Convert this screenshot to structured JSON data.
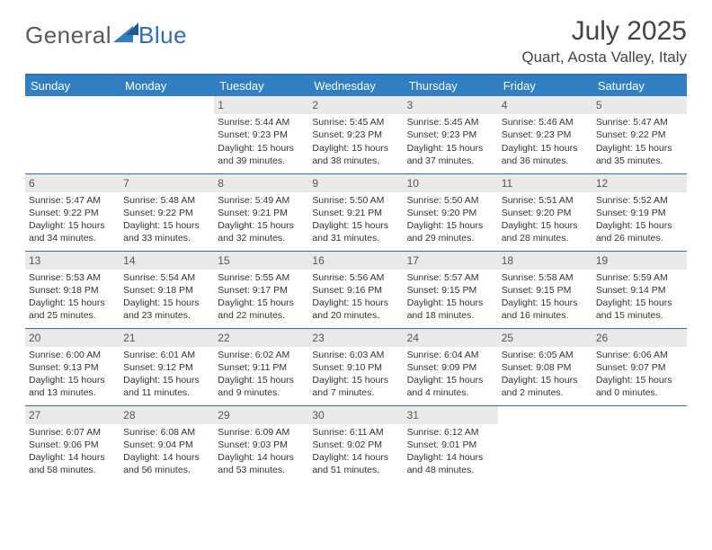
{
  "logo": {
    "text_a": "General",
    "text_b": "Blue"
  },
  "title": "July 2025",
  "location": "Quart, Aosta Valley, Italy",
  "colors": {
    "header_bg": "#2f7fc2",
    "header_border": "#2f6fb3",
    "daynum_bg": "#e9e9e9",
    "text": "#333333",
    "page_bg": "#ffffff"
  },
  "typography": {
    "title_fontsize": 30,
    "location_fontsize": 17,
    "weekday_fontsize": 13,
    "cell_fontsize": 10.5
  },
  "weekdays": [
    "Sunday",
    "Monday",
    "Tuesday",
    "Wednesday",
    "Thursday",
    "Friday",
    "Saturday"
  ],
  "weeks": [
    [
      {
        "empty": true
      },
      {
        "empty": true
      },
      {
        "day": "1",
        "sunrise": "Sunrise: 5:44 AM",
        "sunset": "Sunset: 9:23 PM",
        "dl1": "Daylight: 15 hours",
        "dl2": "and 39 minutes."
      },
      {
        "day": "2",
        "sunrise": "Sunrise: 5:45 AM",
        "sunset": "Sunset: 9:23 PM",
        "dl1": "Daylight: 15 hours",
        "dl2": "and 38 minutes."
      },
      {
        "day": "3",
        "sunrise": "Sunrise: 5:45 AM",
        "sunset": "Sunset: 9:23 PM",
        "dl1": "Daylight: 15 hours",
        "dl2": "and 37 minutes."
      },
      {
        "day": "4",
        "sunrise": "Sunrise: 5:46 AM",
        "sunset": "Sunset: 9:23 PM",
        "dl1": "Daylight: 15 hours",
        "dl2": "and 36 minutes."
      },
      {
        "day": "5",
        "sunrise": "Sunrise: 5:47 AM",
        "sunset": "Sunset: 9:22 PM",
        "dl1": "Daylight: 15 hours",
        "dl2": "and 35 minutes."
      }
    ],
    [
      {
        "day": "6",
        "sunrise": "Sunrise: 5:47 AM",
        "sunset": "Sunset: 9:22 PM",
        "dl1": "Daylight: 15 hours",
        "dl2": "and 34 minutes."
      },
      {
        "day": "7",
        "sunrise": "Sunrise: 5:48 AM",
        "sunset": "Sunset: 9:22 PM",
        "dl1": "Daylight: 15 hours",
        "dl2": "and 33 minutes."
      },
      {
        "day": "8",
        "sunrise": "Sunrise: 5:49 AM",
        "sunset": "Sunset: 9:21 PM",
        "dl1": "Daylight: 15 hours",
        "dl2": "and 32 minutes."
      },
      {
        "day": "9",
        "sunrise": "Sunrise: 5:50 AM",
        "sunset": "Sunset: 9:21 PM",
        "dl1": "Daylight: 15 hours",
        "dl2": "and 31 minutes."
      },
      {
        "day": "10",
        "sunrise": "Sunrise: 5:50 AM",
        "sunset": "Sunset: 9:20 PM",
        "dl1": "Daylight: 15 hours",
        "dl2": "and 29 minutes."
      },
      {
        "day": "11",
        "sunrise": "Sunrise: 5:51 AM",
        "sunset": "Sunset: 9:20 PM",
        "dl1": "Daylight: 15 hours",
        "dl2": "and 28 minutes."
      },
      {
        "day": "12",
        "sunrise": "Sunrise: 5:52 AM",
        "sunset": "Sunset: 9:19 PM",
        "dl1": "Daylight: 15 hours",
        "dl2": "and 26 minutes."
      }
    ],
    [
      {
        "day": "13",
        "sunrise": "Sunrise: 5:53 AM",
        "sunset": "Sunset: 9:18 PM",
        "dl1": "Daylight: 15 hours",
        "dl2": "and 25 minutes."
      },
      {
        "day": "14",
        "sunrise": "Sunrise: 5:54 AM",
        "sunset": "Sunset: 9:18 PM",
        "dl1": "Daylight: 15 hours",
        "dl2": "and 23 minutes."
      },
      {
        "day": "15",
        "sunrise": "Sunrise: 5:55 AM",
        "sunset": "Sunset: 9:17 PM",
        "dl1": "Daylight: 15 hours",
        "dl2": "and 22 minutes."
      },
      {
        "day": "16",
        "sunrise": "Sunrise: 5:56 AM",
        "sunset": "Sunset: 9:16 PM",
        "dl1": "Daylight: 15 hours",
        "dl2": "and 20 minutes."
      },
      {
        "day": "17",
        "sunrise": "Sunrise: 5:57 AM",
        "sunset": "Sunset: 9:15 PM",
        "dl1": "Daylight: 15 hours",
        "dl2": "and 18 minutes."
      },
      {
        "day": "18",
        "sunrise": "Sunrise: 5:58 AM",
        "sunset": "Sunset: 9:15 PM",
        "dl1": "Daylight: 15 hours",
        "dl2": "and 16 minutes."
      },
      {
        "day": "19",
        "sunrise": "Sunrise: 5:59 AM",
        "sunset": "Sunset: 9:14 PM",
        "dl1": "Daylight: 15 hours",
        "dl2": "and 15 minutes."
      }
    ],
    [
      {
        "day": "20",
        "sunrise": "Sunrise: 6:00 AM",
        "sunset": "Sunset: 9:13 PM",
        "dl1": "Daylight: 15 hours",
        "dl2": "and 13 minutes."
      },
      {
        "day": "21",
        "sunrise": "Sunrise: 6:01 AM",
        "sunset": "Sunset: 9:12 PM",
        "dl1": "Daylight: 15 hours",
        "dl2": "and 11 minutes."
      },
      {
        "day": "22",
        "sunrise": "Sunrise: 6:02 AM",
        "sunset": "Sunset: 9:11 PM",
        "dl1": "Daylight: 15 hours",
        "dl2": "and 9 minutes."
      },
      {
        "day": "23",
        "sunrise": "Sunrise: 6:03 AM",
        "sunset": "Sunset: 9:10 PM",
        "dl1": "Daylight: 15 hours",
        "dl2": "and 7 minutes."
      },
      {
        "day": "24",
        "sunrise": "Sunrise: 6:04 AM",
        "sunset": "Sunset: 9:09 PM",
        "dl1": "Daylight: 15 hours",
        "dl2": "and 4 minutes."
      },
      {
        "day": "25",
        "sunrise": "Sunrise: 6:05 AM",
        "sunset": "Sunset: 9:08 PM",
        "dl1": "Daylight: 15 hours",
        "dl2": "and 2 minutes."
      },
      {
        "day": "26",
        "sunrise": "Sunrise: 6:06 AM",
        "sunset": "Sunset: 9:07 PM",
        "dl1": "Daylight: 15 hours",
        "dl2": "and 0 minutes."
      }
    ],
    [
      {
        "day": "27",
        "sunrise": "Sunrise: 6:07 AM",
        "sunset": "Sunset: 9:06 PM",
        "dl1": "Daylight: 14 hours",
        "dl2": "and 58 minutes."
      },
      {
        "day": "28",
        "sunrise": "Sunrise: 6:08 AM",
        "sunset": "Sunset: 9:04 PM",
        "dl1": "Daylight: 14 hours",
        "dl2": "and 56 minutes."
      },
      {
        "day": "29",
        "sunrise": "Sunrise: 6:09 AM",
        "sunset": "Sunset: 9:03 PM",
        "dl1": "Daylight: 14 hours",
        "dl2": "and 53 minutes."
      },
      {
        "day": "30",
        "sunrise": "Sunrise: 6:11 AM",
        "sunset": "Sunset: 9:02 PM",
        "dl1": "Daylight: 14 hours",
        "dl2": "and 51 minutes."
      },
      {
        "day": "31",
        "sunrise": "Sunrise: 6:12 AM",
        "sunset": "Sunset: 9:01 PM",
        "dl1": "Daylight: 14 hours",
        "dl2": "and 48 minutes."
      },
      {
        "empty": true
      },
      {
        "empty": true
      }
    ]
  ]
}
